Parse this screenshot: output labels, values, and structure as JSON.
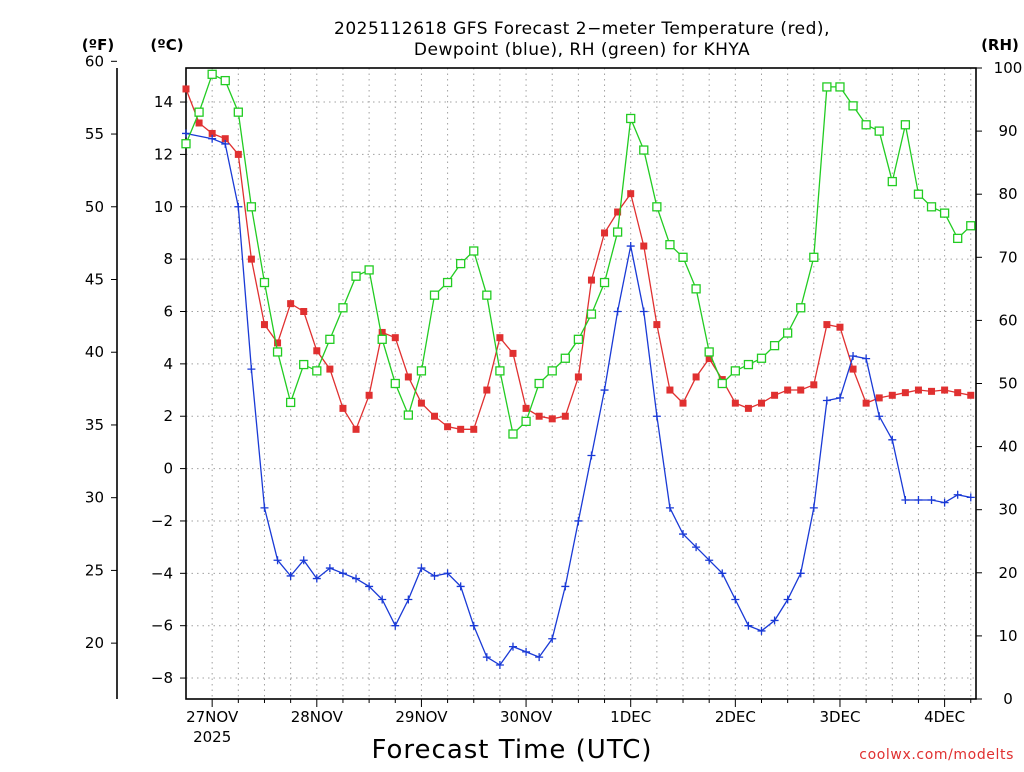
{
  "chart_data": {
    "type": "line",
    "title": "2025112618 GFS Forecast 2−meter Temperature (red),",
    "subtitle": "Dewpoint (blue), RH (green) for KHYA",
    "xlabel": "Forecast Time (UTC)",
    "watermark": "coolwx.com/modelts",
    "units": {
      "fahrenheit": "(ºF)",
      "celsius": "(ºC)",
      "rh": "(RH)"
    },
    "x_unit": "days since 27NOV 00Z",
    "xlim": [
      -0.25,
      7.3
    ],
    "x_ticks": [
      {
        "x": 0,
        "label": "27NOV",
        "sublabel": "2025"
      },
      {
        "x": 1,
        "label": "28NOV"
      },
      {
        "x": 2,
        "label": "29NOV"
      },
      {
        "x": 3,
        "label": "30NOV"
      },
      {
        "x": 4,
        "label": "1DEC"
      },
      {
        "x": 5,
        "label": "2DEC"
      },
      {
        "x": 6,
        "label": "3DEC"
      },
      {
        "x": 7,
        "label": "4DEC"
      }
    ],
    "left_axis_c": {
      "ylim": [
        -8.8,
        15.3
      ],
      "ticks": [
        -8,
        -6,
        -4,
        -2,
        0,
        2,
        4,
        6,
        8,
        10,
        12,
        14
      ],
      "labels": [
        "−8",
        "−6",
        "−4",
        "−2",
        "0",
        "2",
        "4",
        "6",
        "8",
        "10",
        "12",
        "14"
      ]
    },
    "left_axis_f": {
      "ticks": [
        20,
        25,
        30,
        35,
        40,
        45,
        50,
        55,
        60
      ],
      "labels": [
        "20",
        "25",
        "30",
        "35",
        "40",
        "45",
        "50",
        "55",
        "60"
      ]
    },
    "right_axis_rh": {
      "ylim": [
        0,
        100
      ],
      "ticks": [
        0,
        10,
        20,
        30,
        40,
        50,
        60,
        70,
        80,
        90,
        100
      ],
      "labels": [
        "0",
        "10",
        "20",
        "30",
        "40",
        "50",
        "60",
        "70",
        "80",
        "90",
        "100"
      ]
    },
    "colors": {
      "temperature": "#e03030",
      "dewpoint": "#1a3ad6",
      "rh": "#22cc22",
      "grid": "#a0a0a0"
    },
    "series": [
      {
        "name": "Temperature",
        "axis": "celsius",
        "marker": "filled-square",
        "x": [
          -0.25,
          -0.125,
          0,
          0.125,
          0.25,
          0.375,
          0.5,
          0.625,
          0.75,
          0.875,
          1,
          1.125,
          1.25,
          1.375,
          1.5,
          1.625,
          1.75,
          1.875,
          2,
          2.125,
          2.25,
          2.375,
          2.5,
          2.625,
          2.75,
          2.875,
          3,
          3.125,
          3.25,
          3.375,
          3.5,
          3.625,
          3.75,
          3.875,
          4,
          4.125,
          4.25,
          4.375,
          4.5,
          4.625,
          4.75,
          4.875,
          5,
          5.125,
          5.25,
          5.375,
          5.5,
          5.625,
          5.75,
          5.875,
          6,
          6.125,
          6.25,
          6.375,
          6.5,
          6.625,
          6.75,
          6.875,
          7,
          7.125,
          7.25
        ],
        "values": [
          14.5,
          13.2,
          12.8,
          12.6,
          12.0,
          8.0,
          5.5,
          4.8,
          6.3,
          6.0,
          4.5,
          3.8,
          2.3,
          1.5,
          2.8,
          5.2,
          5.0,
          3.5,
          2.5,
          2.0,
          1.6,
          1.5,
          1.5,
          3.0,
          5.0,
          4.4,
          2.3,
          2.0,
          1.9,
          2.0,
          3.5,
          7.2,
          9.0,
          9.8,
          10.5,
          8.5,
          5.5,
          3.0,
          2.5,
          3.5,
          4.2,
          3.4,
          2.5,
          2.3,
          2.5,
          2.8,
          3.0,
          3.0,
          3.2,
          5.5,
          5.4,
          3.8,
          2.5,
          2.7,
          2.8,
          2.9,
          3.0,
          2.95,
          3.0,
          2.9,
          2.8
        ]
      },
      {
        "name": "Dewpoint",
        "axis": "celsius",
        "marker": "plus",
        "x": [
          -0.25,
          0,
          0.125,
          0.25,
          0.375,
          0.5,
          0.625,
          0.75,
          0.875,
          1,
          1.125,
          1.25,
          1.375,
          1.5,
          1.625,
          1.75,
          1.875,
          2,
          2.125,
          2.25,
          2.375,
          2.5,
          2.625,
          2.75,
          2.875,
          3,
          3.125,
          3.25,
          3.375,
          3.5,
          3.625,
          3.75,
          3.875,
          4,
          4.125,
          4.25,
          4.375,
          4.5,
          4.625,
          4.75,
          4.875,
          5,
          5.125,
          5.25,
          5.375,
          5.5,
          5.625,
          5.75,
          5.875,
          6,
          6.125,
          6.25,
          6.375,
          6.5,
          6.625,
          6.75,
          6.875,
          7,
          7.125,
          7.25
        ],
        "values": [
          12.8,
          12.6,
          12.4,
          10.0,
          3.8,
          -1.5,
          -3.5,
          -4.1,
          -3.5,
          -4.2,
          -3.8,
          -4.0,
          -4.2,
          -4.5,
          -5.0,
          -6.0,
          -5.0,
          -3.8,
          -4.1,
          -4.0,
          -4.5,
          -6.0,
          -7.2,
          -7.5,
          -6.8,
          -7.0,
          -7.2,
          -6.5,
          -4.5,
          -2.0,
          0.5,
          3.0,
          6.0,
          8.5,
          6.0,
          2.0,
          -1.5,
          -2.5,
          -3.0,
          -3.5,
          -4.0,
          -5.0,
          -6.0,
          -6.2,
          -5.8,
          -5.0,
          -4.0,
          -1.5,
          2.6,
          2.7,
          4.3,
          4.2,
          2.0,
          1.1,
          -1.2,
          -1.2,
          -1.2,
          -1.3,
          -1.0,
          -1.1
        ]
      },
      {
        "name": "RH",
        "axis": "rh",
        "marker": "open-square",
        "x": [
          -0.25,
          -0.125,
          0,
          0.125,
          0.25,
          0.375,
          0.5,
          0.625,
          0.75,
          0.875,
          1,
          1.125,
          1.25,
          1.375,
          1.5,
          1.625,
          1.75,
          1.875,
          2,
          2.125,
          2.25,
          2.375,
          2.5,
          2.625,
          2.75,
          2.875,
          3,
          3.125,
          3.25,
          3.375,
          3.5,
          3.625,
          3.75,
          3.875,
          4,
          4.125,
          4.25,
          4.375,
          4.5,
          4.625,
          4.75,
          4.875,
          5,
          5.125,
          5.25,
          5.375,
          5.5,
          5.625,
          5.75,
          5.875,
          6,
          6.125,
          6.25,
          6.375,
          6.5,
          6.625,
          6.75,
          6.875,
          7,
          7.125,
          7.25
        ],
        "values": [
          88,
          93,
          99,
          98,
          93,
          78,
          66,
          55,
          47,
          53,
          52,
          57,
          62,
          67,
          68,
          57,
          50,
          45,
          52,
          64,
          66,
          69,
          71,
          64,
          52,
          42,
          44,
          50,
          52,
          54,
          57,
          61,
          66,
          74,
          92,
          87,
          78,
          72,
          70,
          65,
          55,
          50,
          52,
          53,
          54,
          56,
          58,
          62,
          70,
          97,
          97,
          94,
          91,
          90,
          82,
          91,
          80,
          78,
          77,
          73,
          75
        ]
      }
    ]
  }
}
